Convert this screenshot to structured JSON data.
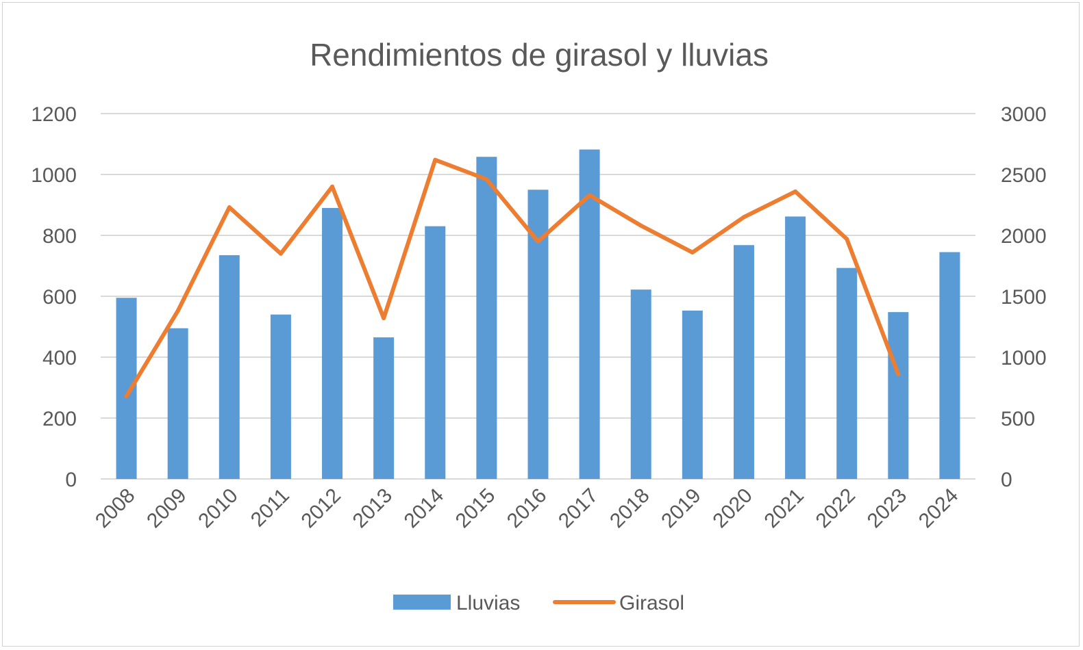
{
  "chart_data": {
    "type": "bar+line",
    "title": "Rendimientos de girasol y lluvias",
    "categories": [
      "2008",
      "2009",
      "2010",
      "2011",
      "2012",
      "2013",
      "2014",
      "2015",
      "2016",
      "2017",
      "2018",
      "2019",
      "2020",
      "2021",
      "2022",
      "2023",
      "2024"
    ],
    "series": [
      {
        "name": "Lluvias",
        "type": "bar",
        "axis": "left",
        "color": "#5b9bd5",
        "values": [
          595,
          495,
          735,
          540,
          890,
          465,
          830,
          1058,
          950,
          1082,
          622,
          553,
          768,
          862,
          693,
          548,
          745
        ]
      },
      {
        "name": "Girasol",
        "type": "line",
        "axis": "right",
        "color": "#ed7d31",
        "values": [
          680,
          1380,
          2230,
          1850,
          2400,
          1320,
          2620,
          2460,
          1950,
          2330,
          2080,
          1860,
          2150,
          2360,
          1970,
          860,
          null
        ]
      }
    ],
    "y_left": {
      "min": 0,
      "max": 1200,
      "ticks": [
        "0",
        "200",
        "400",
        "600",
        "800",
        "1000",
        "1200"
      ]
    },
    "y_right": {
      "min": 0,
      "max": 3000,
      "ticks": [
        "0",
        "500",
        "1000",
        "1500",
        "2000",
        "2500",
        "3000"
      ]
    },
    "grid": true,
    "legend": "bottom"
  }
}
